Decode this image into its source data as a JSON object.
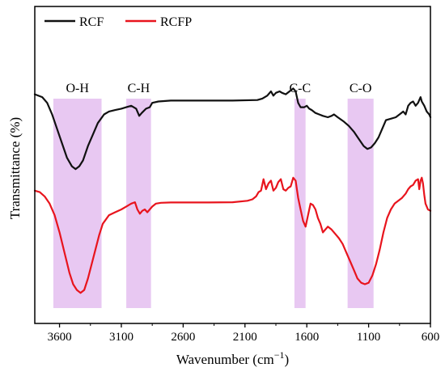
{
  "chart_data": {
    "type": "line",
    "xlabel": "Wavenumber (cm",
    "xlabel_sup": "−1",
    "xlabel_tail": ")",
    "ylabel": "Transmittance (%)",
    "xlim": [
      3800,
      600
    ],
    "x_reversed": true,
    "xticks": [
      3600,
      3100,
      2600,
      2100,
      1600,
      1100,
      600
    ],
    "y_tick_labels": false,
    "ylim": [
      0,
      100
    ],
    "legend_position": "top-left",
    "bands": [
      {
        "label": "O-H",
        "from": 3650,
        "to": 3260
      },
      {
        "label": "C-H",
        "from": 3060,
        "to": 2860
      },
      {
        "label": "C-C",
        "from": 1700,
        "to": 1610
      },
      {
        "label": "C-O",
        "from": 1270,
        "to": 1060
      }
    ],
    "band_color": "#e8c8f2",
    "series": [
      {
        "name": "RCF",
        "color": "#111111",
        "points": [
          [
            3800,
            74
          ],
          [
            3740,
            73
          ],
          [
            3700,
            71
          ],
          [
            3660,
            67
          ],
          [
            3620,
            62
          ],
          [
            3580,
            57
          ],
          [
            3540,
            52
          ],
          [
            3500,
            49
          ],
          [
            3470,
            48
          ],
          [
            3440,
            49
          ],
          [
            3410,
            51
          ],
          [
            3370,
            56
          ],
          [
            3330,
            60
          ],
          [
            3290,
            64
          ],
          [
            3240,
            67
          ],
          [
            3200,
            68
          ],
          [
            3150,
            68.5
          ],
          [
            3100,
            69
          ],
          [
            3060,
            69.5
          ],
          [
            3020,
            70
          ],
          [
            2980,
            69
          ],
          [
            2955,
            66.5
          ],
          [
            2935,
            67.5
          ],
          [
            2900,
            69
          ],
          [
            2870,
            69.5
          ],
          [
            2850,
            71
          ],
          [
            2800,
            71.5
          ],
          [
            2700,
            71.8
          ],
          [
            2600,
            71.8
          ],
          [
            2400,
            71.8
          ],
          [
            2200,
            71.8
          ],
          [
            2000,
            72
          ],
          [
            1960,
            72.5
          ],
          [
            1920,
            73.5
          ],
          [
            1890,
            75
          ],
          [
            1870,
            73.5
          ],
          [
            1850,
            74.5
          ],
          [
            1820,
            75
          ],
          [
            1800,
            74.5
          ],
          [
            1770,
            74
          ],
          [
            1740,
            75
          ],
          [
            1710,
            76
          ],
          [
            1690,
            75
          ],
          [
            1670,
            71
          ],
          [
            1650,
            69.5
          ],
          [
            1620,
            69.5
          ],
          [
            1600,
            70
          ],
          [
            1580,
            69
          ],
          [
            1560,
            68.5
          ],
          [
            1530,
            67.5
          ],
          [
            1500,
            67
          ],
          [
            1470,
            66.5
          ],
          [
            1430,
            66
          ],
          [
            1400,
            66.5
          ],
          [
            1380,
            67
          ],
          [
            1350,
            66
          ],
          [
            1300,
            64.5
          ],
          [
            1260,
            63
          ],
          [
            1220,
            61
          ],
          [
            1180,
            58.5
          ],
          [
            1140,
            56
          ],
          [
            1110,
            55
          ],
          [
            1080,
            55.5
          ],
          [
            1050,
            57
          ],
          [
            1020,
            59
          ],
          [
            990,
            62
          ],
          [
            960,
            65
          ],
          [
            920,
            65.5
          ],
          [
            880,
            66
          ],
          [
            850,
            67
          ],
          [
            820,
            68
          ],
          [
            800,
            67
          ],
          [
            780,
            70
          ],
          [
            760,
            71
          ],
          [
            740,
            71.5
          ],
          [
            720,
            70
          ],
          [
            700,
            71
          ],
          [
            680,
            73
          ],
          [
            670,
            71.5
          ],
          [
            650,
            70
          ],
          [
            630,
            68
          ],
          [
            610,
            67
          ],
          [
            600,
            66
          ]
        ]
      },
      {
        "name": "RCFP",
        "color": "#e8141d",
        "points": [
          [
            3800,
            40.5
          ],
          [
            3760,
            40
          ],
          [
            3720,
            38.5
          ],
          [
            3680,
            36
          ],
          [
            3640,
            32
          ],
          [
            3600,
            26
          ],
          [
            3560,
            19
          ],
          [
            3520,
            12
          ],
          [
            3490,
            8
          ],
          [
            3460,
            6
          ],
          [
            3430,
            5
          ],
          [
            3400,
            6
          ],
          [
            3370,
            10
          ],
          [
            3340,
            15
          ],
          [
            3310,
            20
          ],
          [
            3280,
            25
          ],
          [
            3250,
            29
          ],
          [
            3200,
            32
          ],
          [
            3150,
            33
          ],
          [
            3100,
            34
          ],
          [
            3060,
            35
          ],
          [
            3020,
            36
          ],
          [
            2990,
            36.5
          ],
          [
            2970,
            34
          ],
          [
            2950,
            32.5
          ],
          [
            2930,
            33.5
          ],
          [
            2910,
            34
          ],
          [
            2890,
            33
          ],
          [
            2870,
            34
          ],
          [
            2850,
            35
          ],
          [
            2820,
            36
          ],
          [
            2780,
            36.3
          ],
          [
            2700,
            36.4
          ],
          [
            2600,
            36.4
          ],
          [
            2400,
            36.4
          ],
          [
            2200,
            36.5
          ],
          [
            2080,
            37
          ],
          [
            2040,
            37.5
          ],
          [
            2010,
            38.5
          ],
          [
            1990,
            40
          ],
          [
            1970,
            40.5
          ],
          [
            1950,
            44.5
          ],
          [
            1930,
            41
          ],
          [
            1910,
            43
          ],
          [
            1890,
            44
          ],
          [
            1870,
            40.5
          ],
          [
            1850,
            41.5
          ],
          [
            1830,
            43.5
          ],
          [
            1810,
            44.5
          ],
          [
            1790,
            41
          ],
          [
            1770,
            40.5
          ],
          [
            1750,
            41.5
          ],
          [
            1730,
            42
          ],
          [
            1710,
            45
          ],
          [
            1690,
            44
          ],
          [
            1670,
            38
          ],
          [
            1650,
            34
          ],
          [
            1630,
            30
          ],
          [
            1610,
            28
          ],
          [
            1590,
            32
          ],
          [
            1570,
            36
          ],
          [
            1550,
            35.5
          ],
          [
            1530,
            34
          ],
          [
            1510,
            31
          ],
          [
            1490,
            29
          ],
          [
            1470,
            26
          ],
          [
            1450,
            27
          ],
          [
            1430,
            28
          ],
          [
            1400,
            27
          ],
          [
            1370,
            25.5
          ],
          [
            1340,
            24
          ],
          [
            1310,
            22
          ],
          [
            1280,
            19
          ],
          [
            1250,
            16
          ],
          [
            1220,
            13
          ],
          [
            1190,
            10
          ],
          [
            1160,
            8.5
          ],
          [
            1130,
            8
          ],
          [
            1100,
            8.5
          ],
          [
            1070,
            11
          ],
          [
            1040,
            15
          ],
          [
            1010,
            20
          ],
          [
            980,
            26
          ],
          [
            950,
            31
          ],
          [
            920,
            34
          ],
          [
            890,
            36
          ],
          [
            860,
            37
          ],
          [
            830,
            38
          ],
          [
            800,
            39.5
          ],
          [
            780,
            41
          ],
          [
            760,
            42
          ],
          [
            740,
            42.5
          ],
          [
            720,
            44
          ],
          [
            700,
            44.5
          ],
          [
            690,
            41
          ],
          [
            680,
            44
          ],
          [
            670,
            45
          ],
          [
            660,
            43
          ],
          [
            650,
            39
          ],
          [
            640,
            36
          ],
          [
            620,
            34
          ],
          [
            600,
            33.5
          ]
        ]
      }
    ]
  }
}
